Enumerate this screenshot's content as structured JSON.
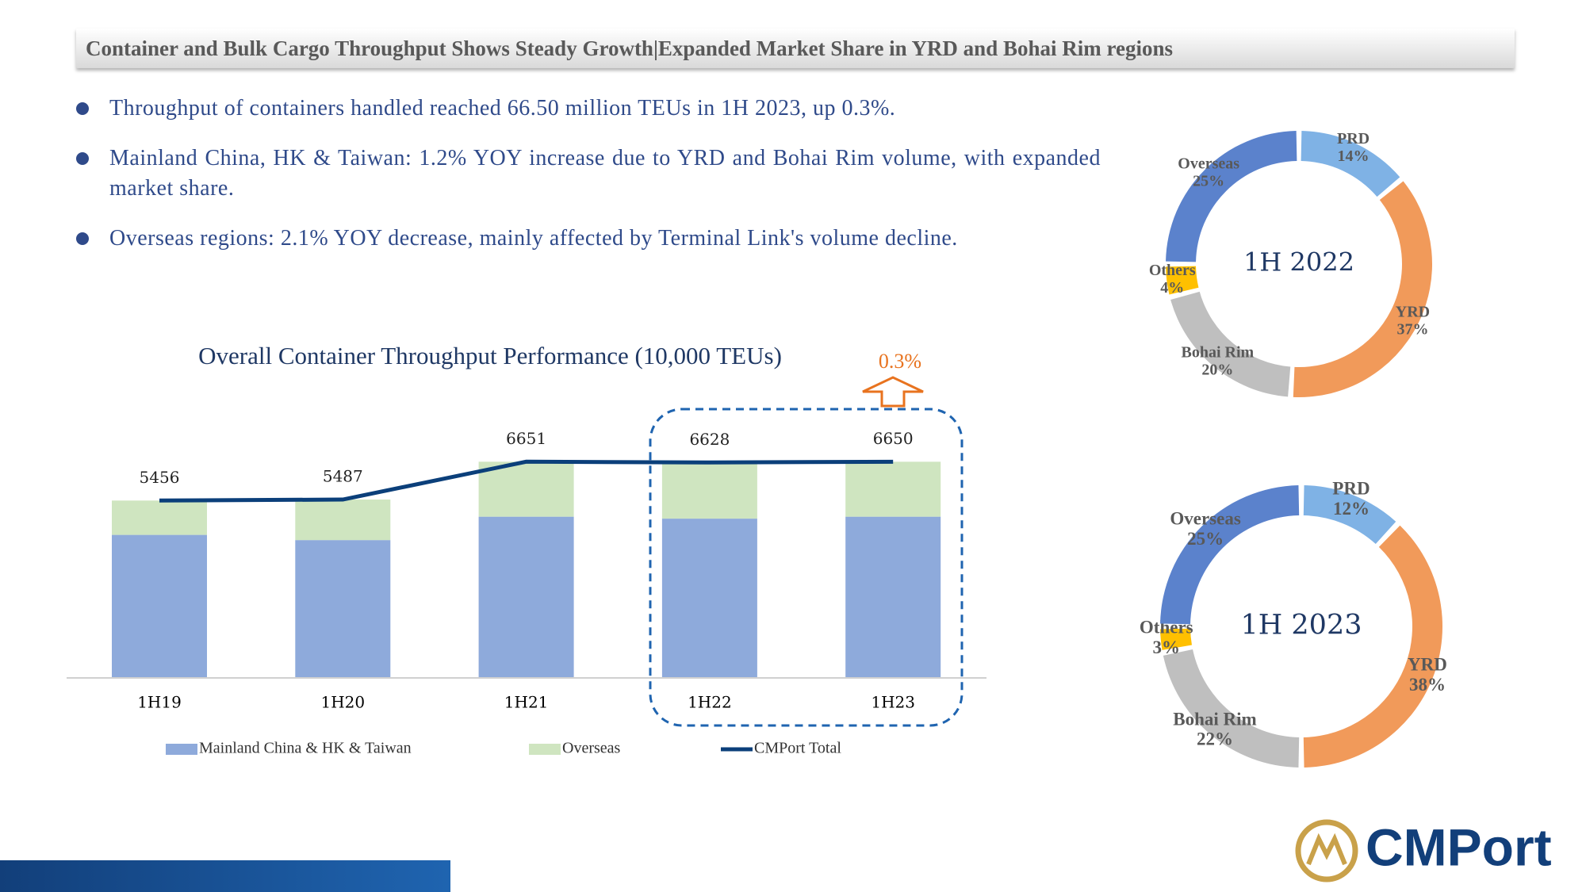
{
  "header": {
    "title": "Container and Bulk Cargo Throughput Shows Steady Growth|Expanded Market Share in YRD and Bohai Rim regions"
  },
  "bullets": [
    "Throughput of containers handled reached 66.50 million TEUs in 1H 2023, up 0.3%.",
    "Mainland China, HK & Taiwan: 1.2% YOY increase due to YRD and Bohai Rim volume, with expanded market share.",
    "Overseas regions: 2.1% YOY decrease, mainly affected by Terminal Link's volume decline."
  ],
  "logo": "CMPort",
  "chart_data": [
    {
      "type": "bar",
      "stacked": true,
      "title": "Overall Container Throughput Performance (10,000 TEUs)",
      "categories": [
        "1H19",
        "1H20",
        "1H21",
        "1H22",
        "1H23"
      ],
      "series": [
        {
          "name": "Mainland China & HK & Taiwan",
          "color": "#8eaadb",
          "values": [
            4400,
            4240,
            4960,
            4900,
            4960
          ]
        },
        {
          "name": "Overseas",
          "color": "#cfe5c0",
          "values": [
            1056,
            1247,
            1691,
            1728,
            1690
          ]
        },
        {
          "name": "CMPort Total",
          "type": "line",
          "color": "#0b3f7a",
          "values": [
            5456,
            5487,
            6651,
            6628,
            6650
          ]
        }
      ],
      "ylim": [
        0,
        7000
      ],
      "annotation": "0.3%"
    },
    {
      "type": "pie",
      "donut": true,
      "center_label": "1H 2022",
      "categories": [
        "PRD",
        "YRD",
        "Bohai Rim",
        "Others",
        "Overseas"
      ],
      "values": [
        14,
        37,
        20,
        4,
        25
      ],
      "value_labels": [
        "14%",
        "37%",
        "20%",
        "4%",
        "25%"
      ],
      "colors": [
        "#7fb2e5",
        "#f19a5a",
        "#bfbfbf",
        "#ffc000",
        "#5b82cc"
      ]
    },
    {
      "type": "pie",
      "donut": true,
      "center_label": "1H 2023",
      "categories": [
        "PRD",
        "YRD",
        "Bohai Rim",
        "Others",
        "Overseas"
      ],
      "values": [
        12,
        38,
        22,
        3,
        25
      ],
      "value_labels": [
        "12%",
        "38%",
        "22%",
        "3%",
        "25%"
      ],
      "colors": [
        "#7fb2e5",
        "#f19a5a",
        "#bfbfbf",
        "#ffc000",
        "#5b82cc"
      ]
    }
  ]
}
